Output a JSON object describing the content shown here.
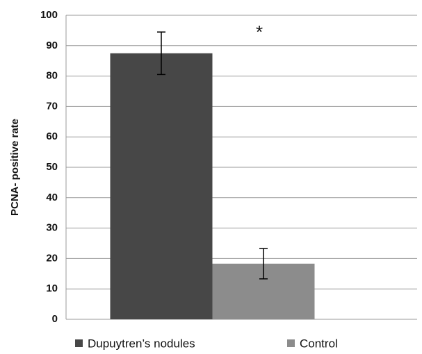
{
  "chart_data": {
    "type": "bar",
    "y_label": "PCNA- positive rate",
    "annotation": "*",
    "categories": [
      null
    ],
    "series": [
      {
        "name": "Dupuytren’s nodules",
        "color": "#474747",
        "values": [
          87.5
        ],
        "errors": [
          7
        ]
      },
      {
        "name": "Control",
        "color": "#8c8c8c",
        "values": [
          18.3
        ],
        "errors": [
          5
        ]
      }
    ],
    "ylim": [
      0,
      100
    ],
    "yticks": [
      0,
      10,
      20,
      30,
      40,
      50,
      60,
      70,
      80,
      90,
      100
    ],
    "grid": true,
    "legend": "bottom"
  }
}
